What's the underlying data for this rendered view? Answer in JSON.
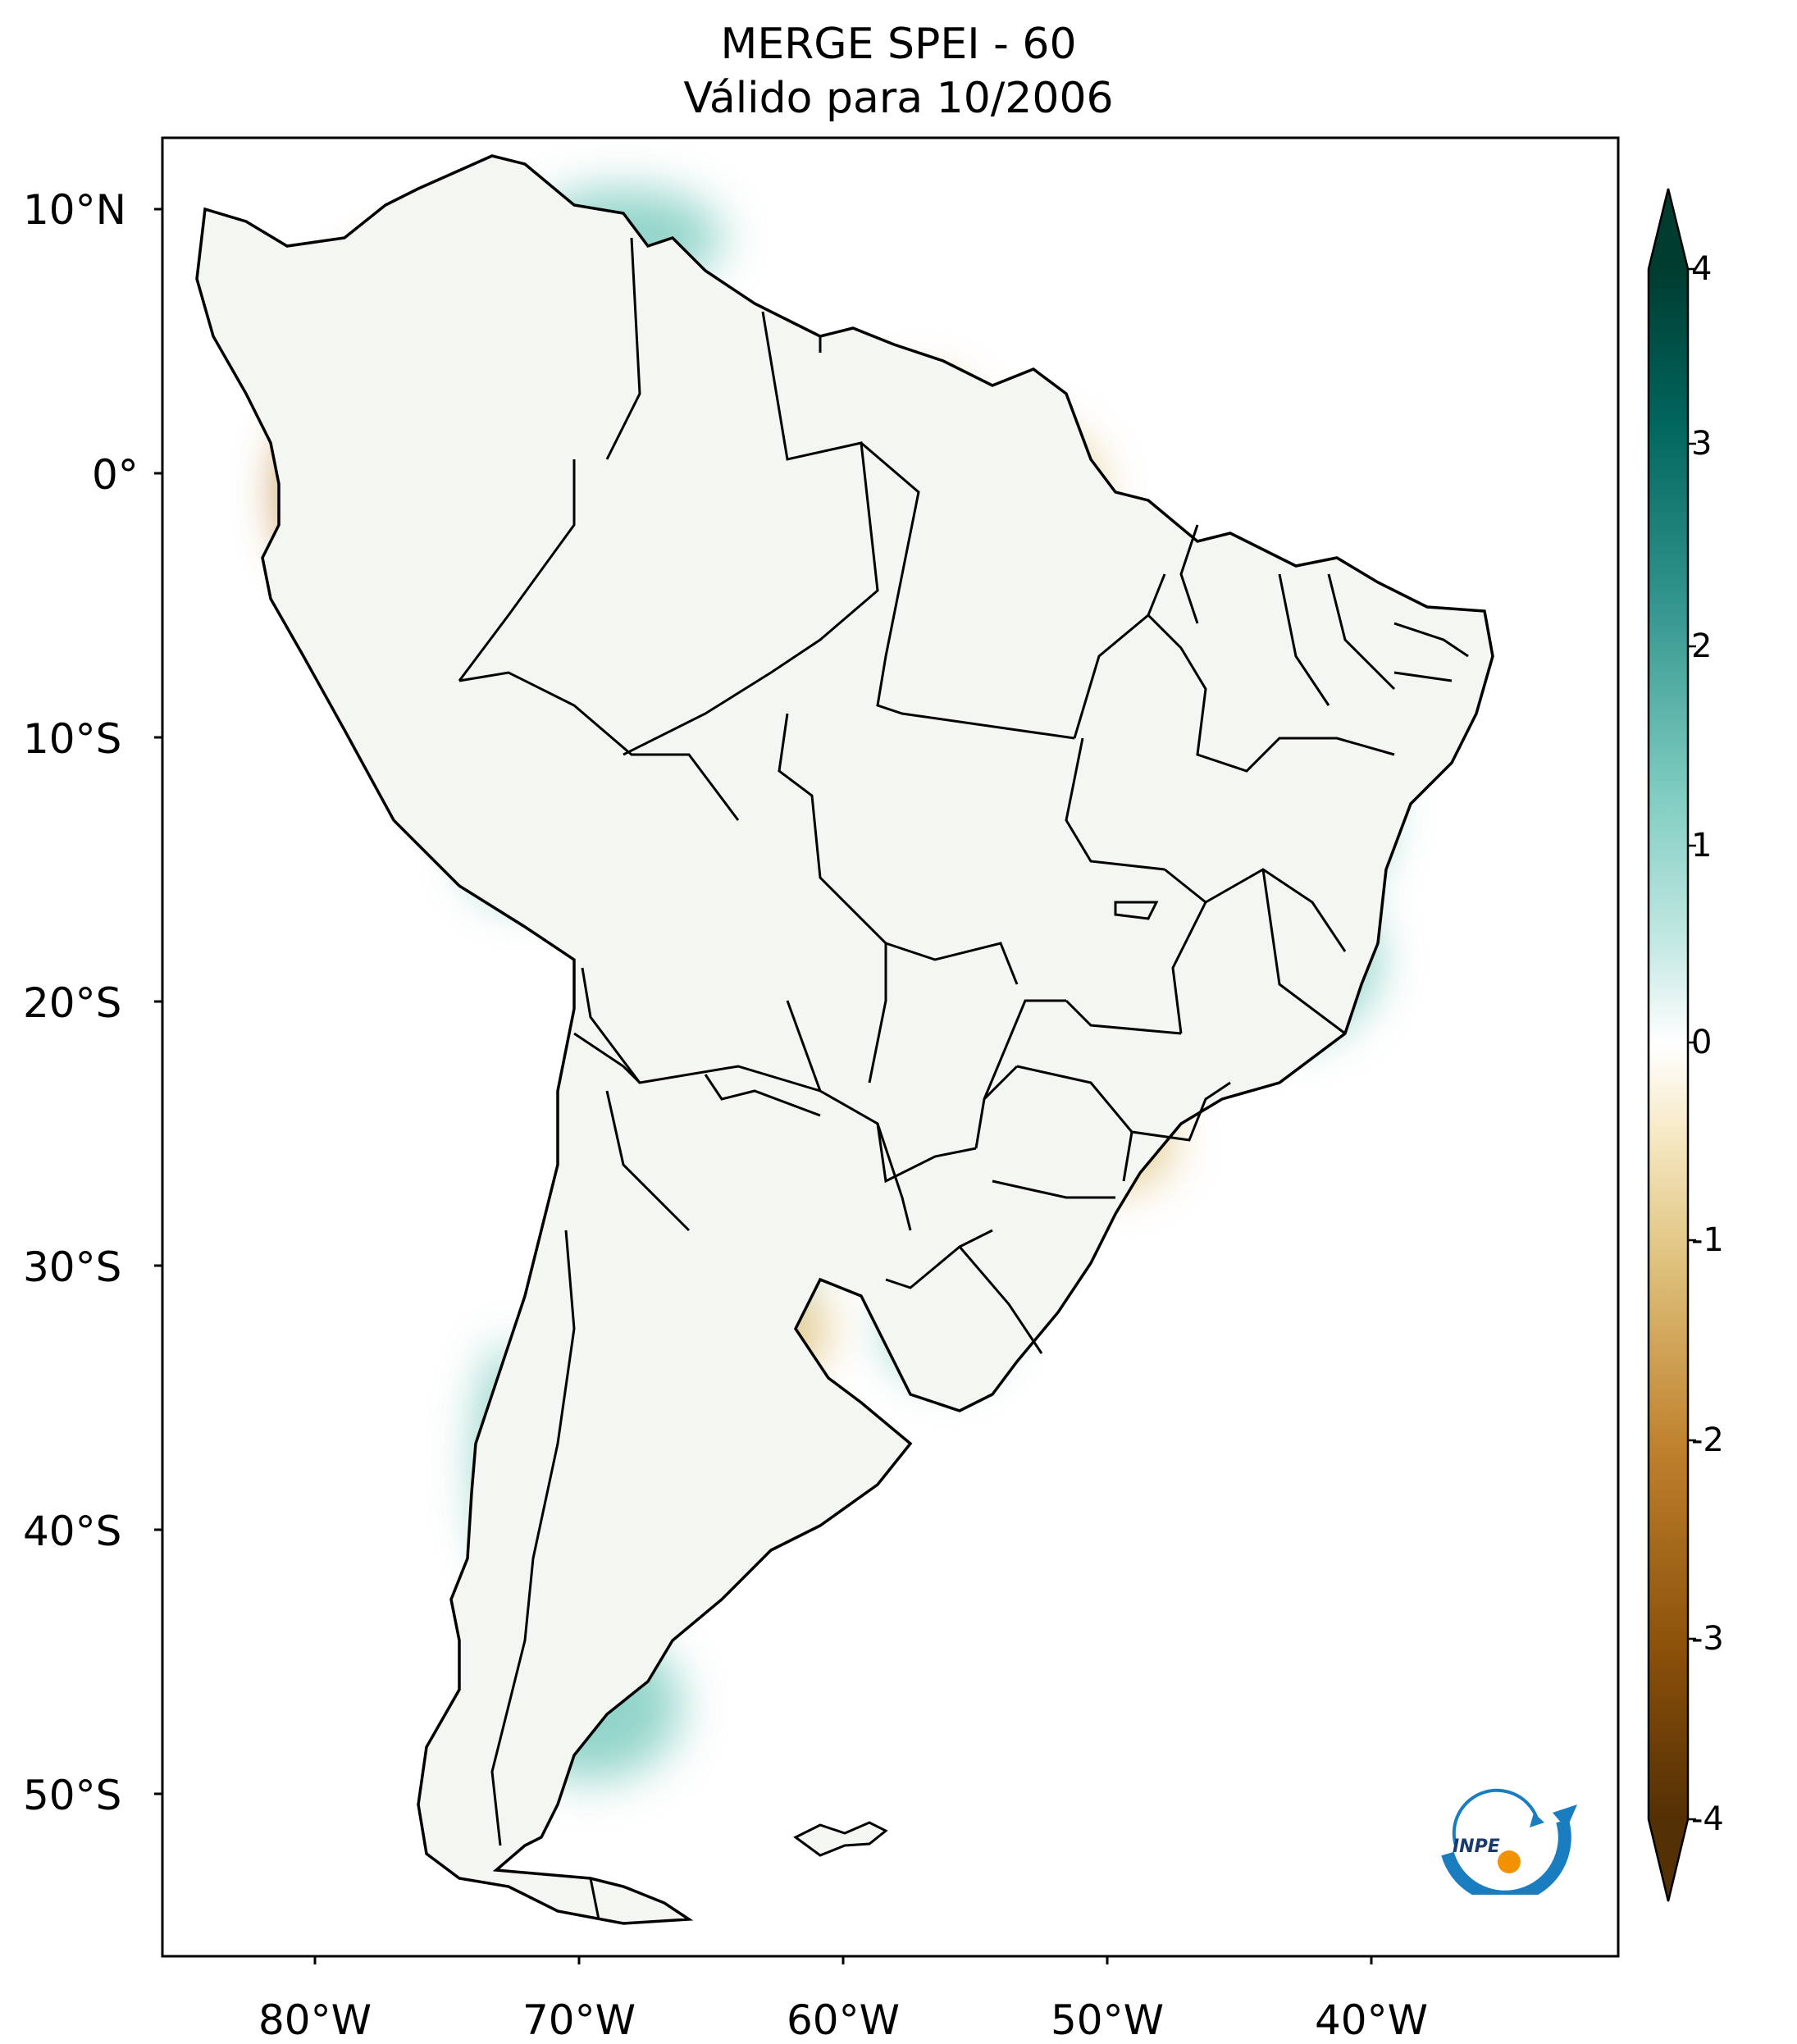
{
  "title": {
    "line1": "MERGE   SPEI - 60",
    "line2": "Válido para 10/2006"
  },
  "lat_labels": [
    "10°N",
    "0°",
    "10°S",
    "20°S",
    "30°S",
    "40°S",
    "50°S"
  ],
  "lon_labels": [
    "80°W",
    "70°W",
    "60°W",
    "50°W",
    "40°W"
  ],
  "colorbar": {
    "ticks": [
      "4",
      "3",
      "2",
      "1",
      "0",
      "-1",
      "-2",
      "-3",
      "-4"
    ],
    "min": -4,
    "max": 4,
    "colormap": "BrBG",
    "extend": "both",
    "colors": {
      "dry_extreme": "#543005",
      "dry_strong": "#8c510a",
      "dry_moderate": "#bf812d",
      "dry_light": "#dfc27d",
      "dry_faint": "#f6e8c3",
      "neutral": "#ffffff",
      "wet_faint": "#c7eae5",
      "wet_light": "#80cdc1",
      "wet_moderate": "#35978f",
      "wet_strong": "#01665e",
      "wet_extreme": "#003c30"
    }
  },
  "logo": {
    "text": "INPE",
    "icon": "inpe-logo"
  }
}
